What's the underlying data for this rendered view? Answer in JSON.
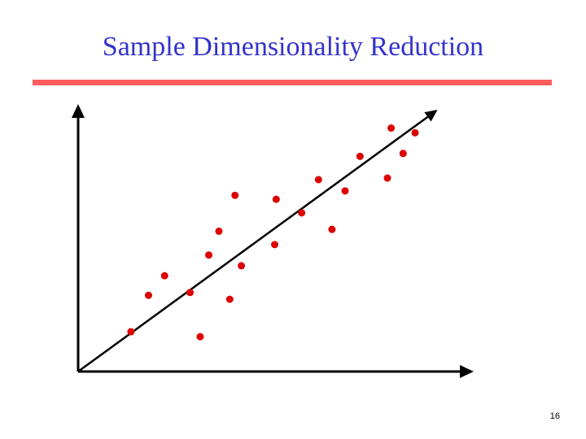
{
  "slide": {
    "title": "Sample Dimensionality Reduction",
    "page_number": "16"
  },
  "colors": {
    "title": "#3333cc",
    "rule": "#ff5c5c",
    "points": "#dd0000",
    "axes": "#000000"
  },
  "figure": {
    "x_range": [
      0,
      100
    ],
    "y_range": [
      0,
      100
    ],
    "points": [
      {
        "x": 14.1,
        "y": 15.2
      },
      {
        "x": 18.8,
        "y": 29.1
      },
      {
        "x": 23.1,
        "y": 36.6
      },
      {
        "x": 29.9,
        "y": 30.2
      },
      {
        "x": 32.6,
        "y": 13.3
      },
      {
        "x": 34.9,
        "y": 44.5
      },
      {
        "x": 37.6,
        "y": 53.6
      },
      {
        "x": 40.5,
        "y": 27.6
      },
      {
        "x": 43.6,
        "y": 40.4
      },
      {
        "x": 41.9,
        "y": 67.3
      },
      {
        "x": 52.5,
        "y": 48.5
      },
      {
        "x": 52.9,
        "y": 65.8
      },
      {
        "x": 59.7,
        "y": 60.6
      },
      {
        "x": 64.2,
        "y": 73.3
      },
      {
        "x": 67.8,
        "y": 54.3
      },
      {
        "x": 71.3,
        "y": 69.0
      },
      {
        "x": 75.3,
        "y": 82.2
      },
      {
        "x": 82.6,
        "y": 73.9
      },
      {
        "x": 83.6,
        "y": 93.0
      },
      {
        "x": 86.8,
        "y": 83.3
      },
      {
        "x": 90.0,
        "y": 91.2
      }
    ],
    "principal_line": {
      "from": [
        0,
        0
      ],
      "to": [
        96,
        100
      ]
    }
  }
}
